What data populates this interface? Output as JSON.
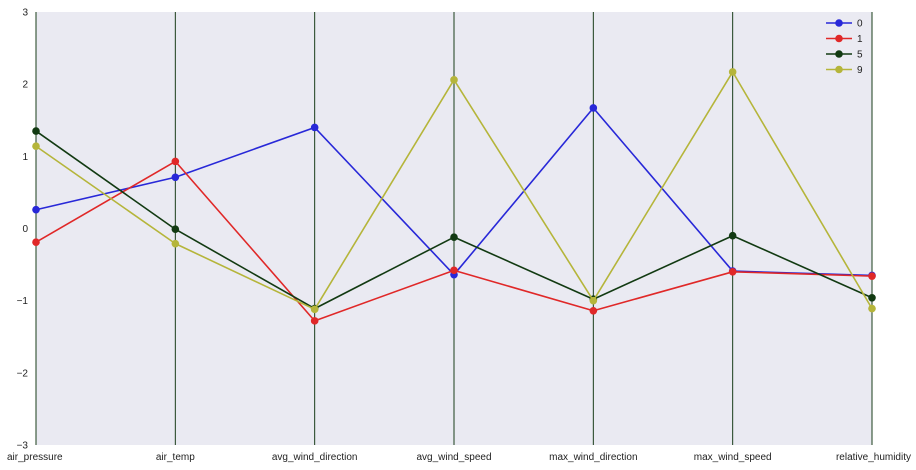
{
  "chart_data": {
    "type": "line",
    "subtype": "parallel-coordinates",
    "title": "",
    "xlabel": "",
    "ylabel": "",
    "categories": [
      "air_pressure",
      "air_temp",
      "avg_wind_direction",
      "avg_wind_speed",
      "max_wind_direction",
      "max_wind_speed",
      "relative_humidity"
    ],
    "ylim": [
      -3,
      3
    ],
    "yticks": [
      -3,
      -2,
      -1,
      0,
      1,
      2,
      3
    ],
    "grid": "vertical axis lines only",
    "background": "#eaeaf2",
    "axis_line_color": "#1a3d1a",
    "legend_position": "top-right",
    "series": [
      {
        "name": "0",
        "color": "#2828d8",
        "values": [
          0.26,
          0.71,
          1.4,
          -0.64,
          1.67,
          -0.59,
          -0.65
        ]
      },
      {
        "name": "1",
        "color": "#e02828",
        "values": [
          -0.19,
          0.93,
          -1.28,
          -0.58,
          -1.14,
          -0.6,
          -0.66
        ]
      },
      {
        "name": "5",
        "color": "#123a12",
        "values": [
          1.35,
          -0.01,
          -1.11,
          -0.12,
          -0.98,
          -0.1,
          -0.96
        ]
      },
      {
        "name": "9",
        "color": "#b5b53a",
        "values": [
          1.14,
          -0.21,
          -1.12,
          2.06,
          -1.0,
          2.17,
          -1.11
        ]
      }
    ]
  }
}
